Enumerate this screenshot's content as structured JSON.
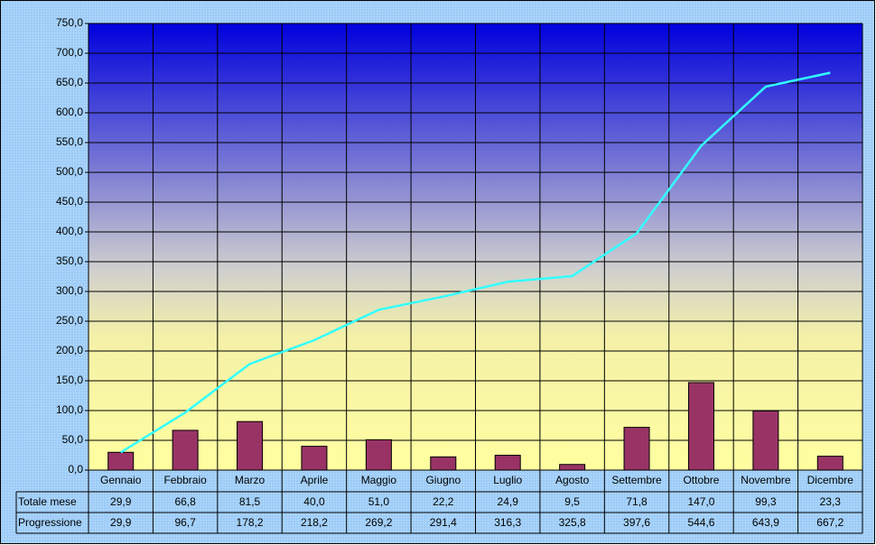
{
  "chart_data": {
    "type": "bar",
    "categories": [
      "Gennaio",
      "Febbraio",
      "Marzo",
      "Aprile",
      "Maggio",
      "Giugno",
      "Luglio",
      "Agosto",
      "Settembre",
      "Ottobre",
      "Novembre",
      "Dicembre"
    ],
    "series": [
      {
        "name": "Totale mese",
        "type": "bar",
        "color": "#993366",
        "values": [
          29.9,
          66.8,
          81.5,
          40.0,
          51.0,
          22.2,
          24.9,
          9.5,
          71.8,
          147.0,
          99.3,
          23.3
        ],
        "value_labels": [
          "29,9",
          "66,8",
          "81,5",
          "40,0",
          "51,0",
          "22,2",
          "24,9",
          "9,5",
          "71,8",
          "147,0",
          "99,3",
          "23,3"
        ]
      },
      {
        "name": "Progressione",
        "type": "line",
        "color": "#33ffff",
        "values": [
          29.9,
          96.7,
          178.2,
          218.2,
          269.2,
          291.4,
          316.3,
          325.8,
          397.6,
          544.6,
          643.9,
          667.2
        ],
        "value_labels": [
          "29,9",
          "96,7",
          "178,2",
          "218,2",
          "269,2",
          "291,4",
          "316,3",
          "325,8",
          "397,6",
          "544,6",
          "643,9",
          "667,2"
        ]
      }
    ],
    "ylim": [
      0,
      750
    ],
    "yticks": [
      {
        "value": 0,
        "label": "0,0"
      },
      {
        "value": 50,
        "label": "50,0"
      },
      {
        "value": 100,
        "label": "100,0"
      },
      {
        "value": 150,
        "label": "150,0"
      },
      {
        "value": 200,
        "label": "200,0"
      },
      {
        "value": 250,
        "label": "250,0"
      },
      {
        "value": 300,
        "label": "300,0"
      },
      {
        "value": 350,
        "label": "350,0"
      },
      {
        "value": 400,
        "label": "400,0"
      },
      {
        "value": 450,
        "label": "450,0"
      },
      {
        "value": 500,
        "label": "500,0"
      },
      {
        "value": 550,
        "label": "550,0"
      },
      {
        "value": 600,
        "label": "600,0"
      },
      {
        "value": 650,
        "label": "650,0"
      },
      {
        "value": 700,
        "label": "700,0"
      },
      {
        "value": 750,
        "label": "750,0"
      }
    ],
    "grid": true
  }
}
